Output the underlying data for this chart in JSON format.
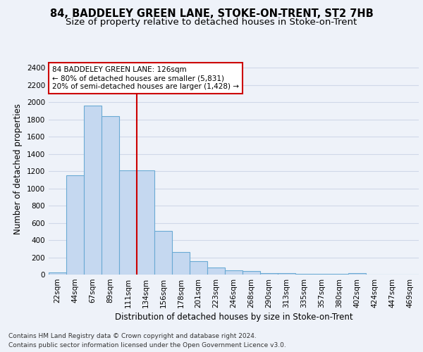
{
  "title1": "84, BADDELEY GREEN LANE, STOKE-ON-TRENT, ST2 7HB",
  "title2": "Size of property relative to detached houses in Stoke-on-Trent",
  "xlabel": "Distribution of detached houses by size in Stoke-on-Trent",
  "ylabel": "Number of detached properties",
  "categories": [
    "22sqm",
    "44sqm",
    "67sqm",
    "89sqm",
    "111sqm",
    "134sqm",
    "156sqm",
    "178sqm",
    "201sqm",
    "223sqm",
    "246sqm",
    "268sqm",
    "290sqm",
    "313sqm",
    "335sqm",
    "357sqm",
    "380sqm",
    "402sqm",
    "424sqm",
    "447sqm",
    "469sqm"
  ],
  "values": [
    28,
    1150,
    1960,
    1840,
    1210,
    1210,
    510,
    265,
    155,
    80,
    48,
    42,
    20,
    18,
    10,
    5,
    5,
    20,
    0,
    0,
    0
  ],
  "bar_color": "#c5d8f0",
  "bar_edge_color": "#6aaad4",
  "vline_color": "#cc0000",
  "annotation_text": "84 BADDELEY GREEN LANE: 126sqm\n← 80% of detached houses are smaller (5,831)\n20% of semi-detached houses are larger (1,428) →",
  "annotation_box_color": "#ffffff",
  "annotation_border_color": "#cc0000",
  "ylim": [
    0,
    2450
  ],
  "yticks": [
    0,
    200,
    400,
    600,
    800,
    1000,
    1200,
    1400,
    1600,
    1800,
    2000,
    2200,
    2400
  ],
  "footnote1": "Contains HM Land Registry data © Crown copyright and database right 2024.",
  "footnote2": "Contains public sector information licensed under the Open Government Licence v3.0.",
  "bg_color": "#eef2f9",
  "grid_color": "#d0d8e8",
  "title1_fontsize": 10.5,
  "title2_fontsize": 9.5,
  "xlabel_fontsize": 8.5,
  "ylabel_fontsize": 8.5,
  "tick_fontsize": 7.5,
  "annotation_fontsize": 7.5,
  "footnote_fontsize": 6.5
}
